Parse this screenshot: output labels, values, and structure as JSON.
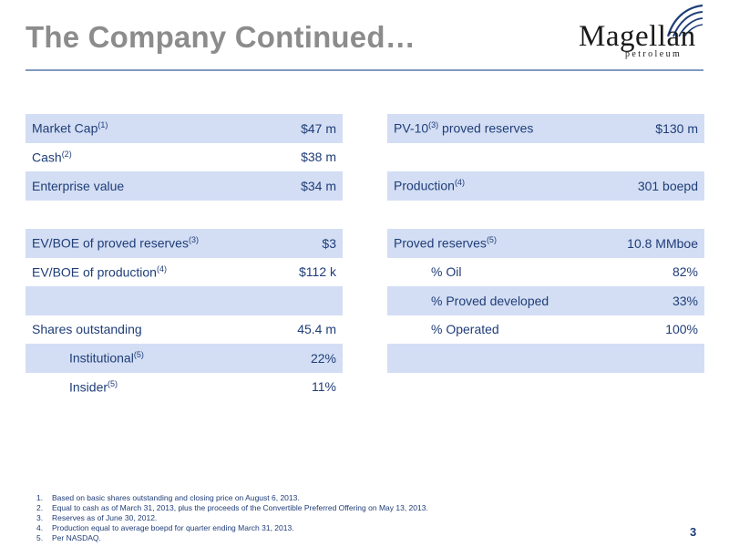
{
  "title": "The Company Continued…",
  "logo": {
    "word": "Magellan",
    "sub": "petroleum"
  },
  "left_rows": [
    {
      "label": "Market Cap",
      "sup": "(1)",
      "value": "$47 m"
    },
    {
      "label": "Cash",
      "sup": "(2)",
      "value": "$38 m"
    },
    {
      "label": "Enterprise value",
      "sup": "",
      "value": "$34 m"
    },
    {
      "label": "",
      "sup": "",
      "value": ""
    },
    {
      "label": "EV/BOE of proved reserves",
      "sup": "(3)",
      "value": "$3"
    },
    {
      "label": "EV/BOE of production",
      "sup": "(4)",
      "value": "$112 k"
    },
    {
      "label": "",
      "sup": "",
      "value": ""
    },
    {
      "label": "Shares outstanding",
      "sup": "",
      "value": "45.4 m"
    },
    {
      "label": "Institutional",
      "sup": "(5)",
      "value": "22%"
    },
    {
      "label": "Insider",
      "sup": "(5)",
      "value": "11%"
    }
  ],
  "right_rows": [
    {
      "label": "PV-10",
      "sup": "(3)",
      "label_tail": " proved reserves",
      "value": "$130 m"
    },
    {
      "label": "",
      "sup": "",
      "label_tail": "",
      "value": ""
    },
    {
      "label": "Production",
      "sup": "(4)",
      "label_tail": "",
      "value": "301 boepd"
    },
    {
      "label": "",
      "sup": "",
      "label_tail": "",
      "value": ""
    },
    {
      "label": "Proved reserves",
      "sup": "(5)",
      "label_tail": "",
      "value": "10.8 MMboe"
    },
    {
      "label": "% Oil",
      "sup": "",
      "label_tail": "",
      "value": "82%"
    },
    {
      "label": "% Proved developed",
      "sup": "",
      "label_tail": "",
      "value": "33%"
    },
    {
      "label": "% Operated",
      "sup": "",
      "label_tail": "",
      "value": "100%"
    },
    {
      "label": "",
      "sup": "",
      "label_tail": "",
      "value": ""
    }
  ],
  "footnotes": [
    {
      "num": "1.",
      "text": "Based on basic shares outstanding  and closing price on August 6, 2013."
    },
    {
      "num": "2.",
      "text": "Equal to cash as of March 31, 2013, plus the proceeds of the Convertible Preferred Offering on May 13, 2013."
    },
    {
      "num": "3.",
      "text": "Reserves as of June 30, 2012."
    },
    {
      "num": "4.",
      "text": "Production equal to average boepd for quarter ending March 31, 2013."
    },
    {
      "num": "5.",
      "text": "Per NASDAQ."
    }
  ],
  "page_number": "3",
  "colors": {
    "accent": "#1f3d78",
    "shade": "#d3def4",
    "title_gray": "#8c8c8c"
  }
}
